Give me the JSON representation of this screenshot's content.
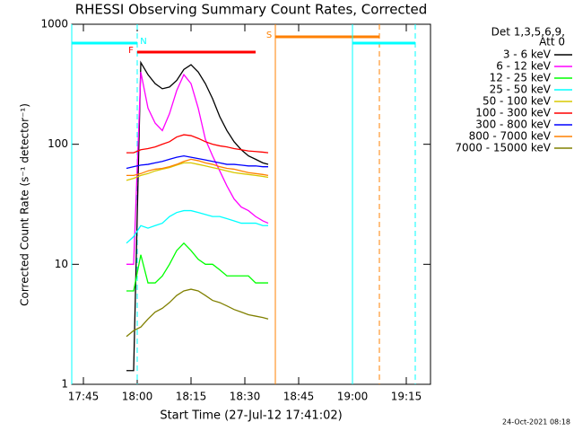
{
  "chart_data": {
    "type": "line",
    "title": "RHESSI Observing Summary Count Rates, Corrected",
    "xlabel": "Start Time (27-Jul-12 17:41:02)",
    "ylabel": "Corrected Count Rate (s⁻¹ detector⁻¹)",
    "legend_title": [
      "Det 1,3,5,6,9,",
      "Att 0"
    ],
    "footer": "24-Oct-2021 08:18",
    "log_y": true,
    "xlim": [
      1061.75,
      1161.75
    ],
    "xticks": [
      {
        "value": 1065,
        "label": "17:45"
      },
      {
        "value": 1080,
        "label": "18:00"
      },
      {
        "value": 1095,
        "label": "18:15"
      },
      {
        "value": 1110,
        "label": "18:30"
      },
      {
        "value": 1125,
        "label": "18:45"
      },
      {
        "value": 1140,
        "label": "19:00"
      },
      {
        "value": 1155,
        "label": "19:15"
      }
    ],
    "ylim": [
      1,
      1000
    ],
    "yticks": [
      1,
      10,
      100,
      1000
    ],
    "x": [
      1077,
      1079,
      1081,
      1083,
      1085,
      1087,
      1089,
      1091,
      1093,
      1095,
      1097,
      1099,
      1101,
      1103,
      1105,
      1107,
      1109,
      1111,
      1113,
      1115,
      1116.5
    ],
    "series": [
      {
        "name": "3 - 6 keV",
        "color": "#000000",
        "values": [
          1.3,
          1.3,
          480,
          380,
          320,
          290,
          300,
          340,
          420,
          460,
          400,
          320,
          240,
          170,
          130,
          105,
          90,
          80,
          75,
          70,
          68
        ]
      },
      {
        "name": "6 - 12 keV",
        "color": "#ff00ff",
        "values": [
          10,
          10,
          400,
          200,
          150,
          130,
          180,
          280,
          380,
          320,
          200,
          110,
          80,
          60,
          45,
          35,
          30,
          28,
          25,
          23,
          22
        ]
      },
      {
        "name": "12 - 25 keV",
        "color": "#00ff00",
        "values": [
          6,
          6,
          12,
          7,
          7,
          8,
          10,
          13,
          15,
          13,
          11,
          10,
          10,
          9,
          8,
          8,
          8,
          8,
          7,
          7,
          7
        ]
      },
      {
        "name": "25 - 50 keV",
        "color": "#00ffff",
        "values": [
          15,
          17,
          21,
          20,
          21,
          22,
          25,
          27,
          28,
          28,
          27,
          26,
          25,
          25,
          24,
          23,
          22,
          22,
          22,
          21,
          21
        ]
      },
      {
        "name": "50 - 100 keV",
        "color": "#d8c800",
        "values": [
          50,
          52,
          55,
          57,
          60,
          62,
          64,
          67,
          70,
          70,
          68,
          66,
          64,
          62,
          60,
          58,
          57,
          56,
          55,
          54,
          53
        ]
      },
      {
        "name": "100 - 300 keV",
        "color": "#ff0000",
        "values": [
          85,
          85,
          90,
          92,
          95,
          100,
          105,
          115,
          120,
          118,
          112,
          105,
          100,
          97,
          95,
          92,
          90,
          88,
          87,
          86,
          85
        ]
      },
      {
        "name": "300 - 800 keV",
        "color": "#0000ff",
        "values": [
          63,
          65,
          67,
          68,
          70,
          72,
          75,
          78,
          80,
          78,
          76,
          74,
          72,
          70,
          68,
          68,
          67,
          66,
          66,
          65,
          65
        ]
      },
      {
        "name": "800 - 7000 keV",
        "color": "#ff8000",
        "values": [
          55,
          55,
          57,
          60,
          62,
          63,
          65,
          68,
          72,
          75,
          73,
          70,
          68,
          65,
          63,
          62,
          60,
          58,
          57,
          56,
          55
        ]
      },
      {
        "name": "7000 - 15000 keV",
        "color": "#808000",
        "values": [
          2.5,
          2.8,
          3,
          3.5,
          4,
          4.3,
          4.8,
          5.5,
          6,
          6.2,
          6,
          5.5,
          5,
          4.8,
          4.5,
          4.2,
          4,
          3.8,
          3.7,
          3.6,
          3.5
        ]
      }
    ],
    "intervals": [
      {
        "label": "N",
        "start": 1061.75,
        "end": 1080,
        "color": "#00ffff",
        "verticals": true
      },
      {
        "label": "F",
        "start": 1080,
        "end": 1113,
        "color": "#ff0000",
        "verticals": false
      },
      {
        "label": "S",
        "start": 1118.5,
        "end": 1147.5,
        "color": "#ff8000",
        "verticals": true
      },
      {
        "start": 1140,
        "end": 1157.5,
        "color": "#00ffff",
        "verticals": true
      }
    ]
  }
}
